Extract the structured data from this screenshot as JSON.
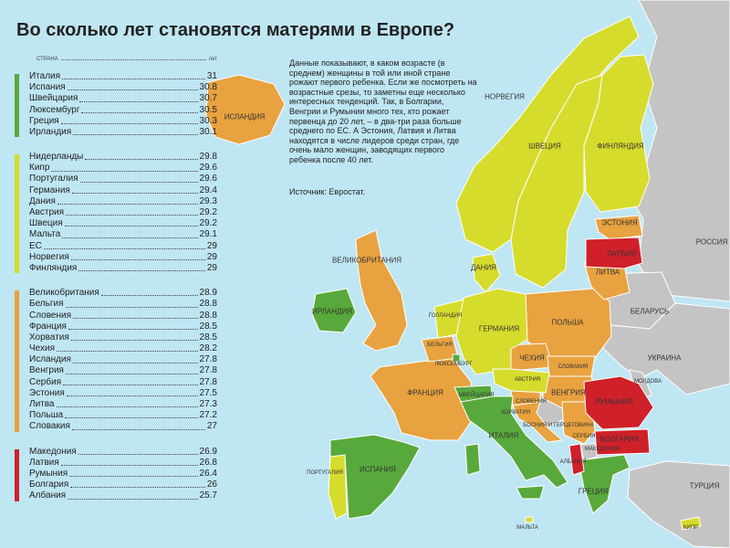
{
  "title": "Во сколько лет становятся матерями в Европе?",
  "legend": {
    "header_left": "СТРАНА",
    "header_right": "лет",
    "groups": [
      {
        "color": "#58a93b",
        "rows": [
          {
            "name": "Италия",
            "value": "31"
          },
          {
            "name": "Испания",
            "value": "30.8"
          },
          {
            "name": "Швейцария",
            "value": "30.7"
          },
          {
            "name": "Люксембург",
            "value": "30.5"
          },
          {
            "name": "Греция",
            "value": "30.3"
          },
          {
            "name": "Ирландия",
            "value": "30.1"
          }
        ]
      },
      {
        "color": "#d6dc2c",
        "rows": [
          {
            "name": "Нидерланды",
            "value": "29.8"
          },
          {
            "name": "Кипр",
            "value": "29.6"
          },
          {
            "name": "Португалия",
            "value": "29.6"
          },
          {
            "name": "Германия",
            "value": "29.4"
          },
          {
            "name": "Дания",
            "value": "29.3"
          },
          {
            "name": "Австрия",
            "value": "29.2"
          },
          {
            "name": "Швеция",
            "value": "29.2"
          },
          {
            "name": "Мальта",
            "value": "29.1"
          },
          {
            "name": "ЕС",
            "value": "29"
          },
          {
            "name": "Норвегия",
            "value": "29"
          },
          {
            "name": "Финляндия",
            "value": "29"
          }
        ]
      },
      {
        "color": "#e8a23f",
        "rows": [
          {
            "name": "Великобритания",
            "value": "28.9"
          },
          {
            "name": "Бельгия",
            "value": "28.8"
          },
          {
            "name": "Словения",
            "value": "28.8"
          },
          {
            "name": "Франция",
            "value": "28.5"
          },
          {
            "name": "Хорватия",
            "value": "28.5"
          },
          {
            "name": "Чехия",
            "value": "28.2"
          },
          {
            "name": "Исландия",
            "value": "27.8"
          },
          {
            "name": "Венгрия",
            "value": "27.8"
          },
          {
            "name": "Сербия",
            "value": "27.8"
          },
          {
            "name": "Эстония",
            "value": "27.5"
          },
          {
            "name": "Литва",
            "value": "27.3"
          },
          {
            "name": "Польша",
            "value": "27.2"
          },
          {
            "name": "Словакия",
            "value": "27"
          }
        ]
      },
      {
        "color": "#d0202a",
        "rows": [
          {
            "name": "Македония",
            "value": "26.9"
          },
          {
            "name": "Латвия",
            "value": "26.8"
          },
          {
            "name": "Румыния",
            "value": "26.4"
          },
          {
            "name": "Болгария",
            "value": "26"
          },
          {
            "name": "Албания",
            "value": "25.7"
          }
        ]
      }
    ]
  },
  "note": "Данные показывают, в каком возрасте (в среднем) женщины в той или иной стране рожают первого ребенка. Если же посмотреть на возрастные срезы, то заметны еще несколько интересных тенденций. Так, в Болгарии, Венгрии и Румынии много тех, кто рожает первенца до 20 лет, – в два-три раза больше среднего по ЕС. А Эстония, Латвия и Литва находятся в числе лидеров среди стран, где очень мало женщин, заводящих первого ребенка после 40 лет.",
  "source": "Источник: Евростат.",
  "colors": {
    "green": "#58a93b",
    "yellow": "#d6dc2c",
    "orange": "#e8a23f",
    "red": "#d0202a",
    "grey": "#c4c4c4",
    "sea": "#bfe6f3"
  },
  "map_labels": {
    "iceland": "ИСЛАНДИЯ",
    "norway": "НОРВЕГИЯ",
    "sweden": "ШВЕЦИЯ",
    "finland": "ФИНЛЯНДИЯ",
    "estonia": "ЭСТОНИЯ",
    "latvia": "ЛАТВИЯ",
    "lithuania": "ЛИТВА",
    "russia": "РОССИЯ",
    "belarus": "БЕЛАРУСЬ",
    "ukraine": "УКРАИНА",
    "uk": "ВЕЛИКОБРИТАНИЯ",
    "ireland": "ИРЛАНДИЯ",
    "denmark": "ДАНИЯ",
    "netherlands": "ГОЛЛАНДИЯ",
    "germany": "ГЕРМАНИЯ",
    "poland": "ПОЛЬША",
    "belgium": "БЕЛЬГИЯ",
    "luxembourg": "ЛЮКСЕМБУРГ",
    "czech": "ЧЕХИЯ",
    "slovakia": "СЛОВАКИЯ",
    "austria": "АВСТРИЯ",
    "hungary": "ВЕНГРИЯ",
    "romania": "РУМЫНИЯ",
    "moldova": "МОЛДОВА",
    "france": "ФРАНЦИЯ",
    "switzerland": "ШВЕЙЦАРИЯ",
    "slovenia": "СЛОВЕНИЯ",
    "croatia": "ХОРВАТИЯ",
    "bosnia": "БОСНИЯ И ГЕРЦЕГОВИНА",
    "serbia": "СЕРБИЯ",
    "bulgaria": "БОЛГАРИЯ",
    "macedonia": "МАКЕДОНИЯ",
    "albania": "АЛБАНИЯ",
    "italy": "ИТАЛИЯ",
    "spain": "ИСПАНИЯ",
    "portugal": "ПОРТУГАЛИЯ",
    "greece": "ГРЕЦИЯ",
    "turkey": "ТУРЦИЯ",
    "malta": "МАЛЬТА",
    "cyprus": "КИПР"
  }
}
